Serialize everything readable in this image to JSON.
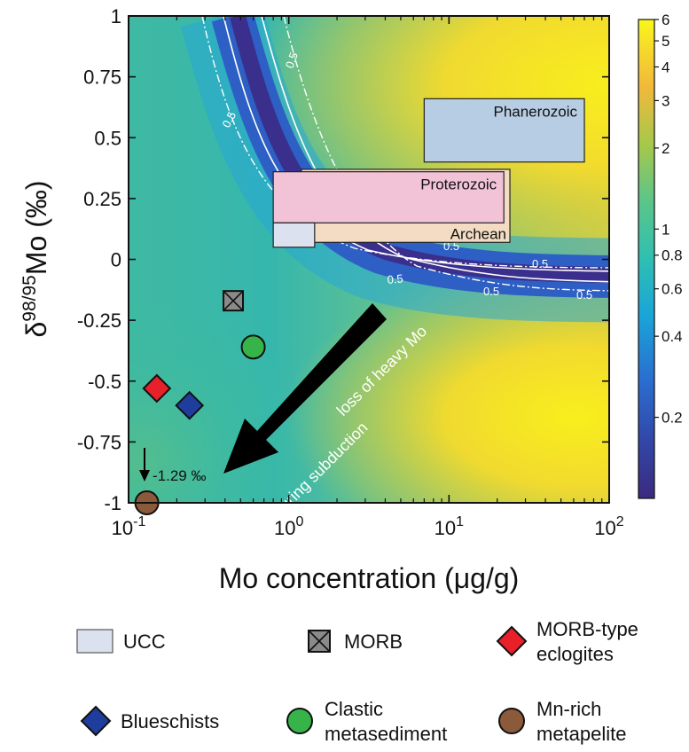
{
  "chart_data": {
    "type": "heatmap",
    "xlabel": "Mo concentration (μg/g)",
    "ylabel_parts": [
      "δ",
      "98/95",
      "Mo (‰)"
    ],
    "x_scale": "log",
    "xlim": [
      0.1,
      100
    ],
    "ylim": [
      -1,
      1
    ],
    "x_ticks": [
      {
        "value": 0.1,
        "base": "10",
        "exp": "-1"
      },
      {
        "value": 1,
        "base": "10",
        "exp": "0"
      },
      {
        "value": 10,
        "base": "10",
        "exp": "1"
      },
      {
        "value": 100,
        "base": "10",
        "exp": "2"
      }
    ],
    "y_ticks": [
      {
        "value": 1,
        "label": "1"
      },
      {
        "value": 0.75,
        "label": "0.75"
      },
      {
        "value": 0.5,
        "label": "0.5"
      },
      {
        "value": 0.25,
        "label": "0.25"
      },
      {
        "value": 0,
        "label": "0"
      },
      {
        "value": -0.25,
        "label": "-0.25"
      },
      {
        "value": -0.5,
        "label": "-0.5"
      },
      {
        "value": -0.75,
        "label": "-0.75"
      },
      {
        "value": -1,
        "label": "-1"
      }
    ],
    "colorbar": {
      "scale": "log",
      "range": [
        0.1,
        6
      ],
      "ticks": [
        {
          "value": 6,
          "label": "6"
        },
        {
          "value": 5,
          "label": "5"
        },
        {
          "value": 4,
          "label": "4"
        },
        {
          "value": 3,
          "label": "3"
        },
        {
          "value": 2,
          "label": "2"
        },
        {
          "value": 1,
          "label": "1"
        },
        {
          "value": 0.8,
          "label": "0.8"
        },
        {
          "value": 0.6,
          "label": "0.6"
        },
        {
          "value": 0.4,
          "label": "0.4"
        },
        {
          "value": 0.2,
          "label": "0.2"
        }
      ]
    },
    "contour_label": "0.5",
    "regions": [
      {
        "name": "Phanerozoic",
        "x": [
          7,
          70
        ],
        "y": [
          0.4,
          0.66
        ],
        "color": "#b7cde3"
      },
      {
        "name": "Archean",
        "x": [
          1.2,
          24
        ],
        "y": [
          0.07,
          0.37
        ],
        "color": "#f3dcc3"
      },
      {
        "name": "Proterozoic",
        "x": [
          0.8,
          22
        ],
        "y": [
          0.15,
          0.36
        ],
        "color": "#f2c3d6"
      },
      {
        "name": "",
        "x": [
          0.8,
          1.45
        ],
        "y": [
          0.05,
          0.15
        ],
        "color": "#dce1ef"
      }
    ],
    "points": [
      {
        "series": "MORB",
        "x": 0.45,
        "y": -0.17
      },
      {
        "series": "Clastic metasediment",
        "x": 0.6,
        "y": -0.36
      },
      {
        "series": "MORB-type eclogites",
        "x": 0.15,
        "y": -0.53
      },
      {
        "series": "Blueschists",
        "x": 0.24,
        "y": -0.6
      },
      {
        "series": "Mn-rich metapelite",
        "x": 0.13,
        "y": -1.0
      }
    ],
    "arrow_annotation": [
      "loss of heavy Mo",
      "during subduction"
    ],
    "offscale_note": "-1.29 ‰",
    "legend": [
      {
        "key": "ucc",
        "lines": [
          "UCC"
        ],
        "marker": "rect",
        "color": "#dce1ef"
      },
      {
        "key": "morb",
        "lines": [
          "MORB"
        ],
        "marker": "xsquare",
        "color": "#8a8a8a"
      },
      {
        "key": "eclogite",
        "lines": [
          "MORB-type",
          "eclogites"
        ],
        "marker": "diamond",
        "color": "#e8202a"
      },
      {
        "key": "blueschist",
        "lines": [
          "Blueschists"
        ],
        "marker": "diamond",
        "color": "#1f3d9c"
      },
      {
        "key": "clastic",
        "lines": [
          "Clastic",
          "metasediment"
        ],
        "marker": "circle",
        "color": "#36b44a"
      },
      {
        "key": "mnrich",
        "lines": [
          "Mn-rich",
          "metapelite"
        ],
        "marker": "circle",
        "color": "#8a5a3a"
      }
    ],
    "legend_placement": "bottom"
  }
}
